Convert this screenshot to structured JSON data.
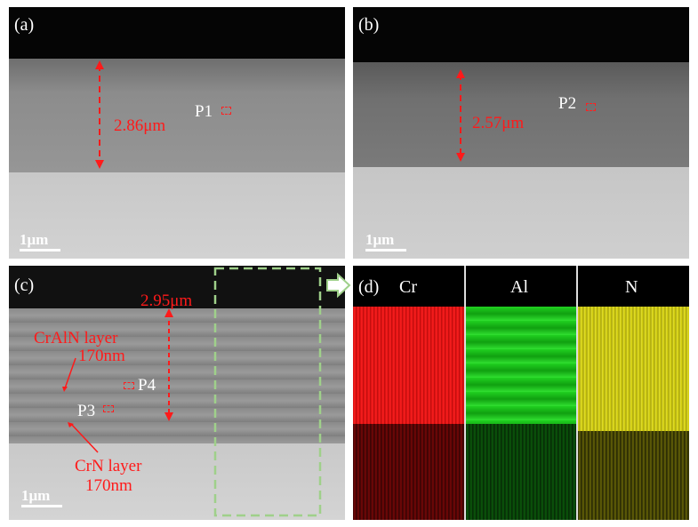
{
  "panels": {
    "a": {
      "label": "(a)",
      "thickness": "2.86μm",
      "point": "P1",
      "scale": "1μm"
    },
    "b": {
      "label": "(b)",
      "thickness": "2.57μm",
      "point": "P2",
      "scale": "1μm"
    },
    "c": {
      "label": "(c)",
      "thickness": "2.95μm",
      "point1": "P4",
      "point2": "P3",
      "crain_label": "CrAlN layer",
      "crain_thickness": "170nm",
      "crn_label": "CrN layer",
      "crn_thickness": "170nm",
      "scale": "1μm"
    },
    "d": {
      "label": "(d)",
      "elements": [
        "Cr",
        "Al",
        "N"
      ]
    }
  },
  "colors": {
    "annotation": "#ff1a1a",
    "cr_map": "#e01010",
    "al_map": "#10c010",
    "n_map": "#e6e01a",
    "selection": "#9fd08a"
  }
}
